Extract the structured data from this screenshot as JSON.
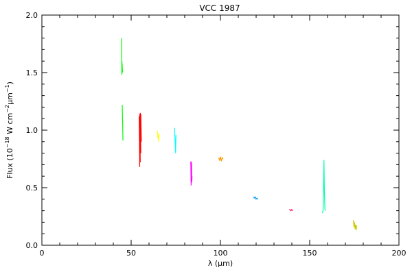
{
  "chart_data": {
    "type": "line",
    "title": "VCC 1987",
    "xlabel": "λ (μm)",
    "ylabel": "Flux (10",
    "ylabel_exp1": "−18",
    "ylabel_mid": " W cm",
    "ylabel_exp2": "−2",
    "ylabel_mu": "μm",
    "ylabel_exp3": "−1",
    "ylabel_close": ")",
    "xlim": [
      0,
      200
    ],
    "ylim": [
      0,
      2.0
    ],
    "x_major_ticks": [
      0,
      50,
      100,
      150,
      200
    ],
    "x_tick_labels": [
      "0",
      "50",
      "100",
      "150",
      "200"
    ],
    "y_major_ticks": [
      0.0,
      0.5,
      1.0,
      1.5,
      2.0
    ],
    "y_tick_labels": [
      "0.0",
      "0.5",
      "1.0",
      "1.5",
      "2.0"
    ],
    "grid": false,
    "series": [
      {
        "color": "#00ff00",
        "lines": [
          {
            "x": [
              44.6,
              44.7,
              44.8
            ],
            "y": [
              1.8,
              1.62,
              1.48
            ]
          },
          {
            "x": [
              44.8,
              45.0,
              45.2
            ],
            "y": [
              1.6,
              1.56,
              1.5
            ]
          },
          {
            "x": [
              45.0,
              45.1,
              45.2
            ],
            "y": [
              1.22,
              1.15,
              1.07
            ]
          },
          {
            "x": [
              45.2,
              45.3,
              45.4
            ],
            "y": [
              1.08,
              1.0,
              0.91
            ]
          }
        ]
      },
      {
        "color": "#ff0000",
        "lines": [
          {
            "x": [
              54.5,
              54.6,
              54.7,
              54.8
            ],
            "y": [
              1.12,
              0.98,
              0.84,
              0.68
            ]
          },
          {
            "x": [
              54.8,
              54.9,
              55.0,
              55.1
            ],
            "y": [
              1.14,
              1.0,
              0.86,
              0.72
            ]
          },
          {
            "x": [
              55.1,
              55.2,
              55.3,
              55.4
            ],
            "y": [
              1.15,
              1.04,
              0.92,
              0.8
            ]
          },
          {
            "x": [
              55.4,
              55.5,
              55.6,
              55.7
            ],
            "y": [
              1.14,
              1.06,
              0.98,
              0.9
            ]
          }
        ]
      },
      {
        "color": "#ffff00",
        "lines": [
          {
            "x": [
              64.8,
              65.0,
              65.2,
              65.4,
              65.6
            ],
            "y": [
              0.99,
              0.93,
              0.96,
              0.9,
              0.97
            ]
          }
        ]
      },
      {
        "color": "#00ffff",
        "lines": [
          {
            "x": [
              74.3,
              74.5,
              74.7,
              74.9,
              75.1
            ],
            "y": [
              1.02,
              0.94,
              0.88,
              0.8,
              0.96
            ]
          }
        ]
      },
      {
        "color": "#ff00ff",
        "lines": [
          {
            "x": [
              83.4,
              83.5,
              83.6,
              83.7
            ],
            "y": [
              0.73,
              0.62,
              0.52,
              0.58
            ]
          },
          {
            "x": [
              83.8,
              83.9,
              84.0,
              84.1
            ],
            "y": [
              0.72,
              0.64,
              0.55,
              0.6
            ]
          }
        ]
      },
      {
        "color": "#ff9900",
        "lines": [
          {
            "x": [
              99.0,
              99.5,
              100.0,
              100.5,
              101.0,
              101.5
            ],
            "y": [
              0.76,
              0.74,
              0.77,
              0.73,
              0.76,
              0.75
            ]
          }
        ]
      },
      {
        "color": "#0099ff",
        "lines": [
          {
            "x": [
              118.5,
              119.0,
              119.5,
              120.0,
              120.5,
              121.0
            ],
            "y": [
              0.42,
              0.41,
              0.42,
              0.4,
              0.41,
              0.4
            ]
          }
        ]
      },
      {
        "color": "#ff0066",
        "lines": [
          {
            "x": [
              138.5,
              139.0,
              139.5,
              140.0,
              140.5
            ],
            "y": [
              0.31,
              0.31,
              0.3,
              0.31,
              0.3
            ]
          }
        ]
      },
      {
        "color": "#00ffaa",
        "lines": [
          {
            "x": [
              157.0,
              157.5,
              157.8,
              158.0,
              158.2,
              158.5,
              158.8
            ],
            "y": [
              0.28,
              0.3,
              0.55,
              0.74,
              0.5,
              0.32,
              0.3
            ]
          }
        ]
      },
      {
        "color": "#cccc00",
        "lines": [
          {
            "x": [
              174.5,
              174.8,
              175.1,
              175.4,
              175.7,
              176.0,
              176.3
            ],
            "y": [
              0.22,
              0.16,
              0.2,
              0.14,
              0.18,
              0.13,
              0.17
            ]
          }
        ]
      }
    ]
  }
}
